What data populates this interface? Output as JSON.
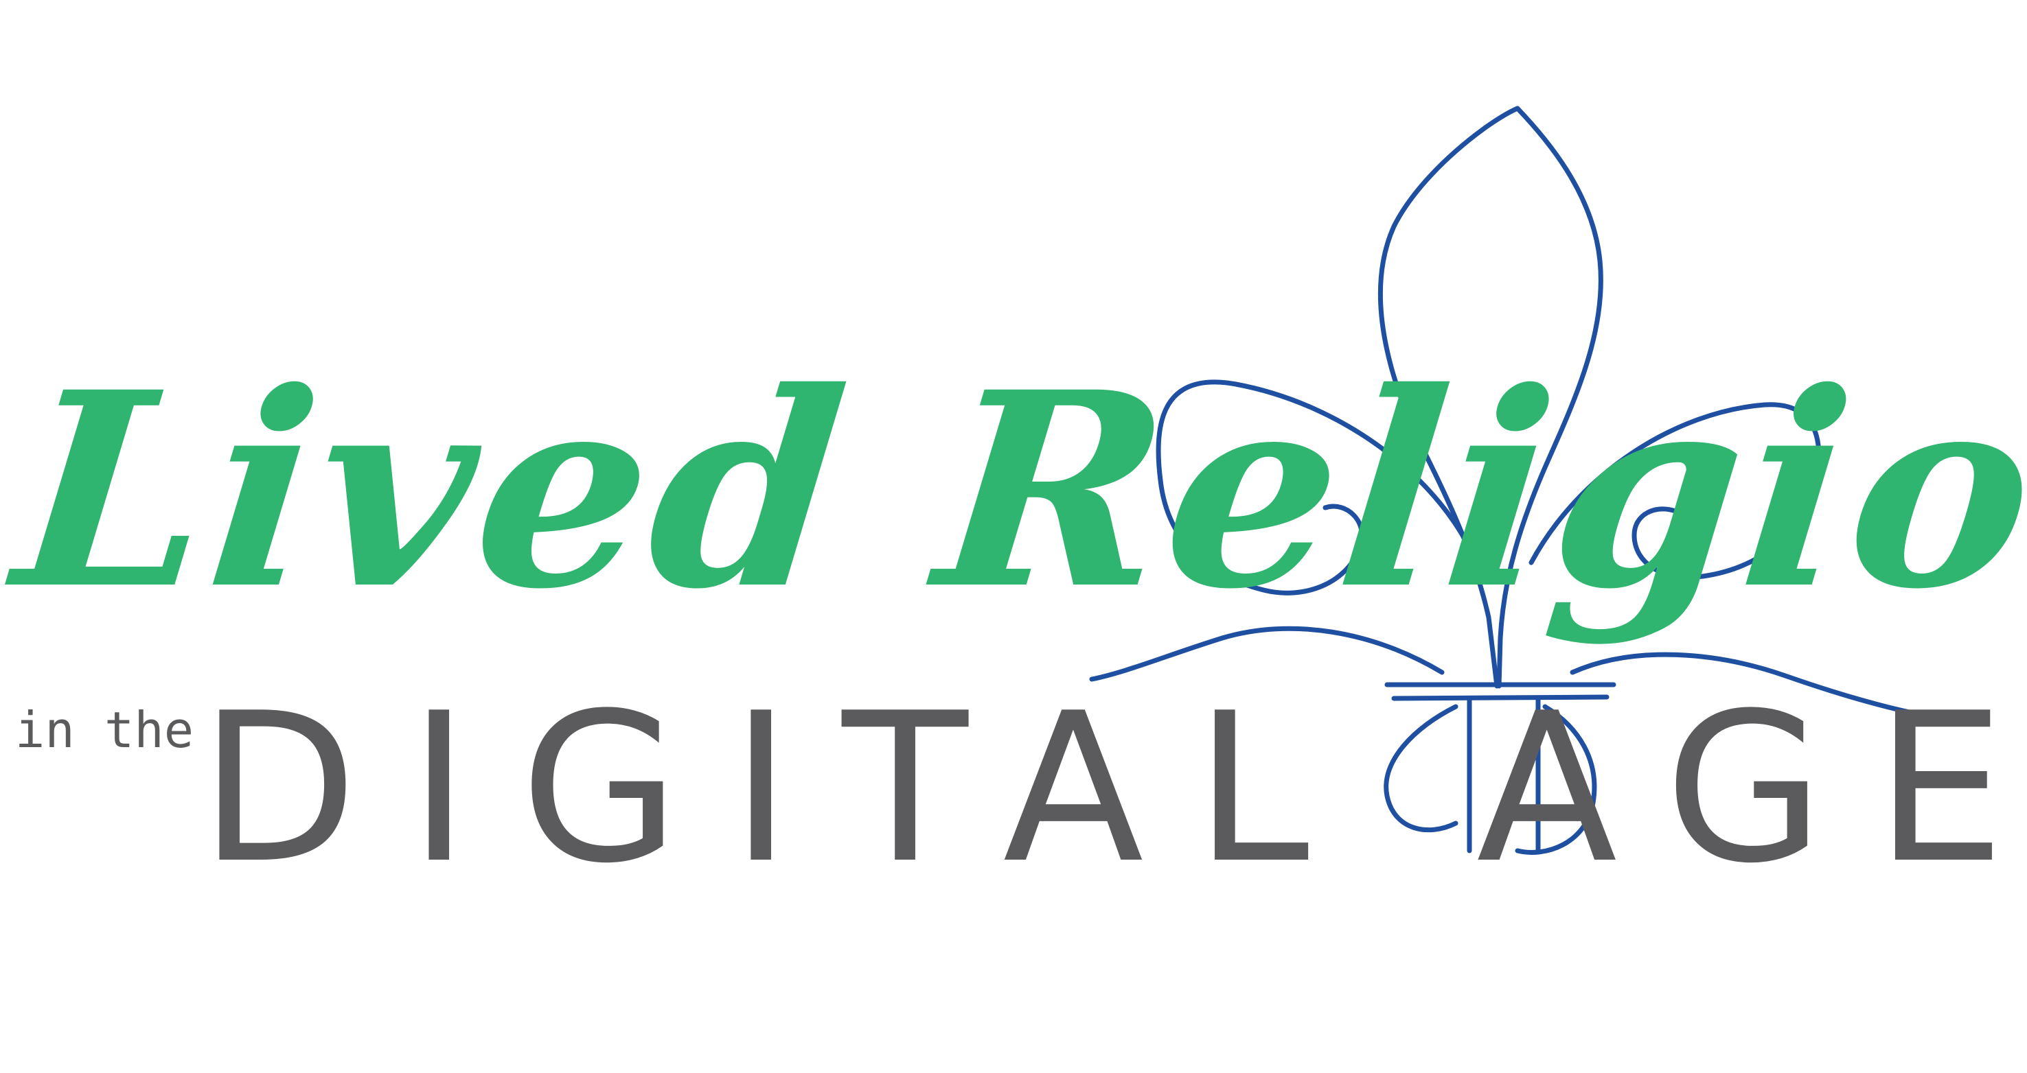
{
  "logo": {
    "title": "Lived Religion",
    "prefix": "in the",
    "subtitle": "DIGITAL AGE",
    "emblem_icon": "fleur-de-lis-icon",
    "colors": {
      "title": "#2fb56f",
      "subtitle": "#5b5b5d",
      "emblem": "#1f4fa0",
      "background": "#ffffff"
    }
  }
}
